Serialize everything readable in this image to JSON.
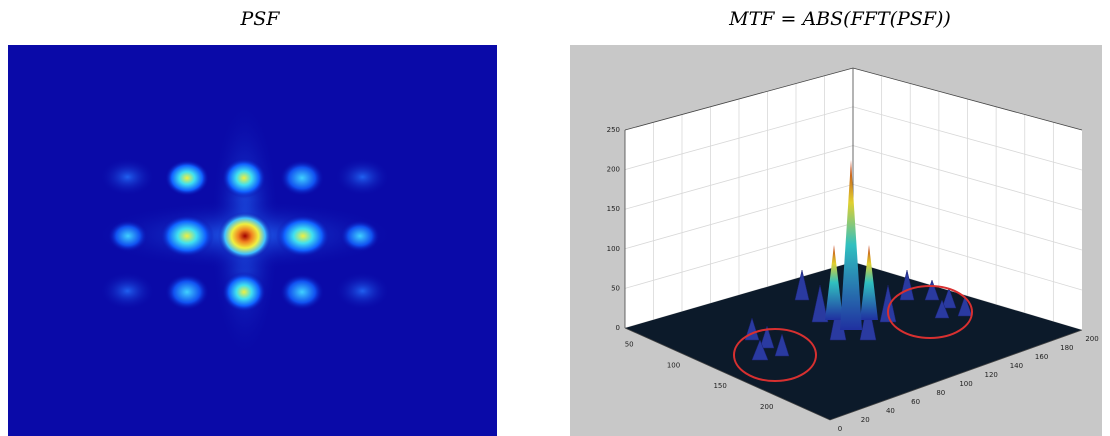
{
  "panels": [
    {
      "title": "PSF"
    },
    {
      "title": "MTF = ABS(FFT(PSF))",
      "z_ticks": [
        "0",
        "50",
        "100",
        "150",
        "200",
        "250"
      ],
      "y_ticks": [
        "50",
        "100",
        "150",
        "200"
      ],
      "x_ticks": [
        "0",
        "20",
        "40",
        "60",
        "80",
        "100",
        "120",
        "140",
        "160",
        "180",
        "200"
      ]
    }
  ]
}
